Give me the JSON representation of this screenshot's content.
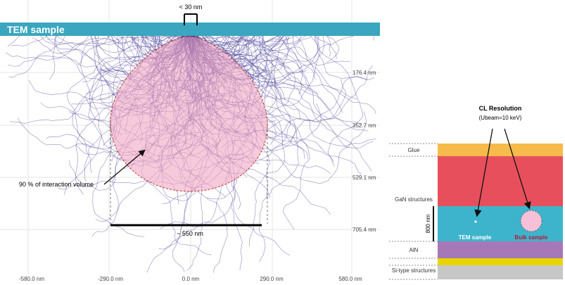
{
  "simulation": {
    "banner_label": "TEM sample",
    "spot_label": "< 30 nm",
    "interaction_label": "90 % of interaction volume",
    "width_label": "~ 550 nm",
    "axes": {
      "x_ticks": [
        "-580.0 nm",
        "-290.0 nm",
        "0.0 nm",
        "290.0 nm",
        "580.0 nm"
      ],
      "y_ticks": [
        "176.4 nm",
        "352.7 nm",
        "529.1 nm",
        "705.4 nm"
      ]
    },
    "colors": {
      "banner": "#3aa6bf",
      "trajectories": "#3b2f8f",
      "volume_fill": "#f2a7c3",
      "volume_edge": "#c0392b",
      "grid": "#e6e6e6"
    }
  },
  "stack": {
    "title": "CL Resolution",
    "subtitle": "(Ubeam=10 keV)",
    "layers": [
      {
        "name": "Glue",
        "color": "#f6bb4a"
      },
      {
        "name": "GaN structures",
        "color": "#e84f5c"
      },
      {
        "name": "",
        "color": "#3db4cc"
      },
      {
        "name": "AlN",
        "color": "#a678b7"
      },
      {
        "name": "",
        "color": "#e9d400"
      },
      {
        "name": "Si-type structures",
        "color": "#c7c7c7"
      }
    ],
    "thickness_label": "800 nm",
    "tem_label": "TEM sample",
    "bulk_label": "Bulk sample",
    "colors": {
      "tem_label": "#ffffff",
      "bulk_label": "#c0133b",
      "bulk_circle": "#f6c1d8"
    }
  }
}
